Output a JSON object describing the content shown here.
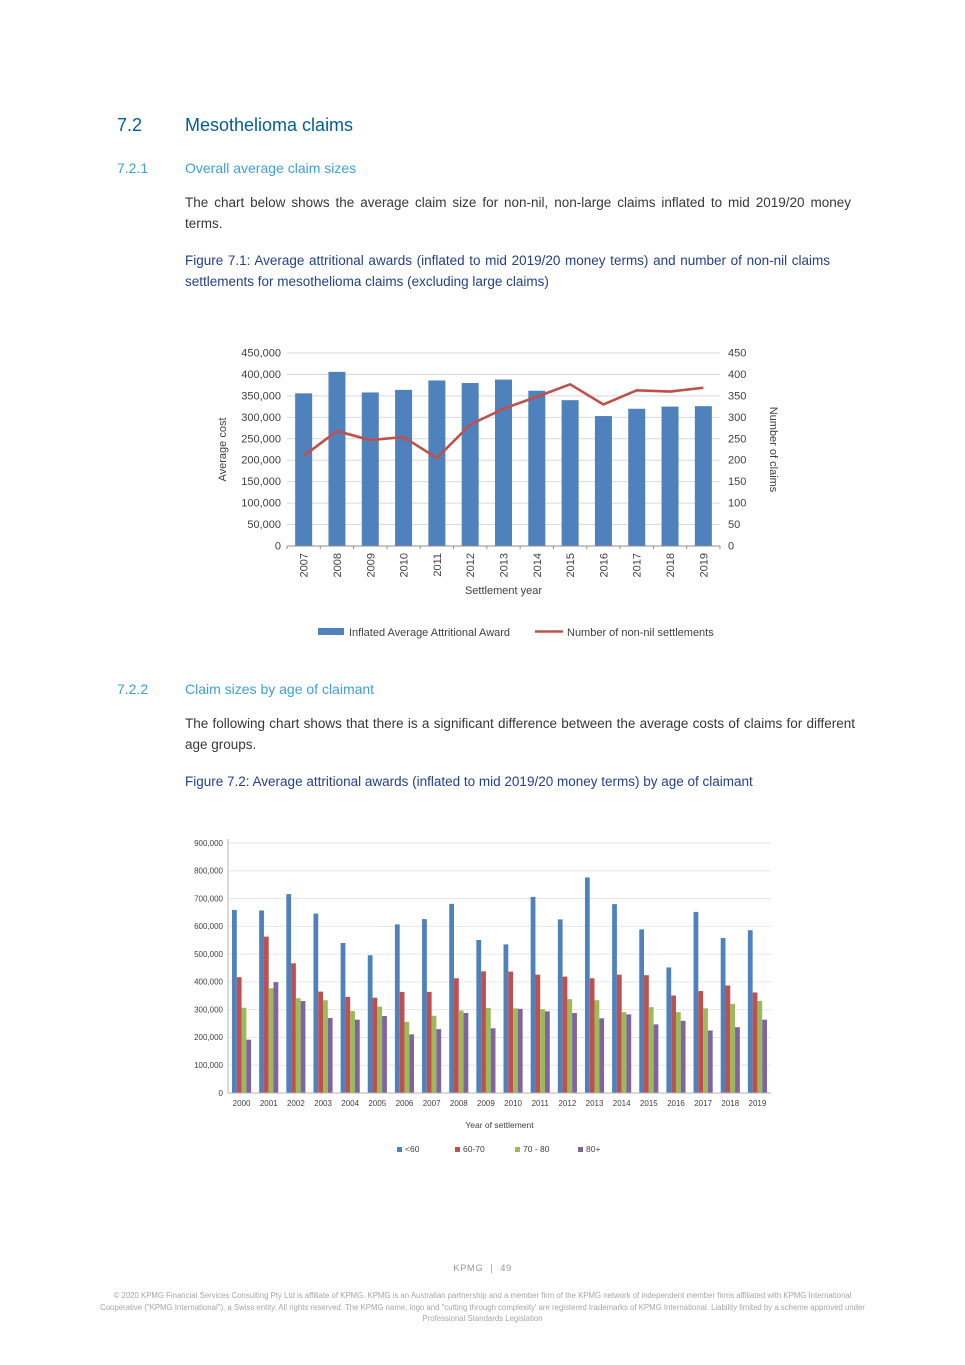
{
  "document": {
    "section": {
      "number": "7.2",
      "title": "Mesothelioma claims"
    },
    "subsection1": {
      "number": "7.2.1",
      "title": "Overall average claim sizes"
    },
    "paragraph1": "The chart below shows the average claim size for non-nil, non-large claims inflated to mid 2019/20 money terms.",
    "figure1_caption": "Figure 7.1: Average attritional awards (inflated to mid 2019/20 money terms) and number of non-nil claims settlements for mesothelioma claims (excluding large claims)",
    "subsection2": {
      "number": "7.2.2",
      "title": "Claim sizes by age of claimant"
    },
    "paragraph2": "The following chart shows that there is a significant difference between the average costs of claims for different age groups.",
    "figure2_caption": "Figure 7.2: Average attritional awards (inflated to mid 2019/20 money terms) by age of claimant",
    "footer": {
      "brand": "KPMG",
      "separator": "|",
      "page_number": "49",
      "legal": "© 2020 KPMG Financial Services Consulting Pty Ltd is affiliate of KPMG. KPMG is an Australian partnership and a member firm of the KPMG network of independent member firms affiliated with KPMG International Cooperative (\"KPMG International\"), a Swiss entity. All rights reserved. The KPMG name, logo and \"cutting through complexity' are registered trademarks of KPMG International. Liability limited by a scheme approved under Professional Standards Legislation"
    }
  },
  "colors": {
    "heading_blue": "#005e96",
    "subheading_blue": "#3ea0d8",
    "caption_blue": "#24408c",
    "bar_blue": "#4F81BD",
    "line_red": "#C0504D",
    "bar_green": "#9BBB59",
    "bar_purple": "#8064A2",
    "gridline": "#d9d9d9",
    "axis": "#8c8c8c",
    "tick_text": "#3f3f3f"
  },
  "chart_data": [
    {
      "id": "figure-7-1",
      "type": "bar",
      "subtype": "bar+line-dual-axis",
      "categories": [
        2007,
        2008,
        2009,
        2010,
        2011,
        2012,
        2013,
        2014,
        2015,
        2016,
        2017,
        2018,
        2019
      ],
      "bar_series": {
        "name": "Inflated Average Attritional Award",
        "color": "#4F81BD",
        "axis": "left",
        "values": [
          356000,
          406000,
          358000,
          364000,
          386000,
          380000,
          388000,
          362000,
          340000,
          303000,
          320000,
          325000,
          326000
        ]
      },
      "line_series": {
        "name": "Number of non-nil settlements",
        "color": "#C0504D",
        "axis": "right",
        "values": [
          210,
          268,
          247,
          254,
          205,
          283,
          320,
          348,
          377,
          330,
          363,
          360,
          369
        ]
      },
      "left_axis": {
        "label": "Average cost",
        "min": 0,
        "max": 450000,
        "step": 50000
      },
      "right_axis": {
        "label": "Number of claims",
        "min": 0,
        "max": 450,
        "step": 50
      },
      "xlabel": "Settlement year",
      "grid": true,
      "legend_position": "bottom"
    },
    {
      "id": "figure-7-2",
      "type": "bar",
      "subtype": "grouped-bars",
      "categories": [
        2000,
        2001,
        2002,
        2003,
        2004,
        2005,
        2006,
        2007,
        2008,
        2009,
        2010,
        2011,
        2012,
        2013,
        2014,
        2015,
        2016,
        2017,
        2018,
        2019
      ],
      "series": [
        {
          "name": "<60",
          "color": "#4F81BD",
          "values": [
            659000,
            657000,
            716000,
            646000,
            540000,
            496000,
            607000,
            626000,
            681000,
            551000,
            535000,
            706000,
            625000,
            776000,
            680000,
            589000,
            452000,
            652000,
            558000,
            586000
          ]
        },
        {
          "name": "60-70",
          "color": "#C0504D",
          "values": [
            417000,
            563000,
            467000,
            365000,
            346000,
            343000,
            364000,
            364000,
            413000,
            438000,
            437000,
            426000,
            419000,
            413000,
            426000,
            424000,
            351000,
            367000,
            387000,
            362000
          ]
        },
        {
          "name": "70 - 80",
          "color": "#9BBB59",
          "values": [
            307000,
            377000,
            341000,
            334000,
            295000,
            311000,
            256000,
            278000,
            297000,
            306000,
            305000,
            302000,
            338000,
            334000,
            291000,
            309000,
            291000,
            305000,
            321000,
            331000
          ]
        },
        {
          "name": "80+",
          "color": "#8064A2",
          "values": [
            192000,
            399000,
            331000,
            270000,
            264000,
            277000,
            211000,
            230000,
            288000,
            233000,
            303000,
            294000,
            288000,
            269000,
            283000,
            247000,
            260000,
            225000,
            237000,
            264000
          ]
        }
      ],
      "y_axis": {
        "label": "",
        "min": 0,
        "max": 900000,
        "step": 100000
      },
      "xlabel": "Year of settlement",
      "grid": true,
      "legend_position": "bottom"
    }
  ]
}
